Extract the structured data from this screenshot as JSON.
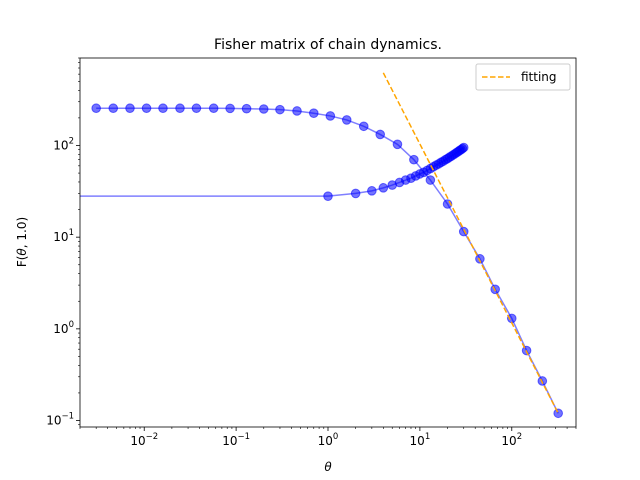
{
  "chart_data": {
    "type": "line",
    "title": "Fisher matrix of chain dynamics.",
    "xlabel": "θ",
    "ylabel": "F(θ, 1.0)",
    "xscale": "log",
    "yscale": "log",
    "xlim": [
      0.002,
      500
    ],
    "ylim": [
      0.085,
      900
    ],
    "grid": false,
    "legend": {
      "placement": "top-right",
      "entries": [
        "fitting"
      ]
    },
    "x_tick_labels": [
      {
        "value": 0.01,
        "base": "10",
        "exp": "−2"
      },
      {
        "value": 0.1,
        "base": "10",
        "exp": "−1"
      },
      {
        "value": 1,
        "base": "10",
        "exp": "0"
      },
      {
        "value": 10,
        "base": "10",
        "exp": "1"
      },
      {
        "value": 100,
        "base": "10",
        "exp": "2"
      }
    ],
    "y_tick_labels": [
      {
        "value": 0.1,
        "base": "10",
        "exp": "−1"
      },
      {
        "value": 1,
        "base": "10",
        "exp": "0"
      },
      {
        "value": 10,
        "base": "10",
        "exp": "1"
      },
      {
        "value": 100,
        "base": "10",
        "exp": "2"
      }
    ],
    "colors": {
      "series": "#0000ff",
      "fitting": "#ffa500"
    },
    "series": [
      {
        "style": "line-markers",
        "x": [
          0.003,
          0.0046,
          0.007,
          0.0106,
          0.016,
          0.0245,
          0.037,
          0.057,
          0.086,
          0.13,
          0.2,
          0.3,
          0.46,
          0.7,
          1.06,
          1.6,
          2.45,
          3.7,
          5.7,
          8.6,
          13,
          20,
          30,
          45,
          66,
          100,
          145,
          215,
          320
        ],
        "y": [
          255,
          255,
          255,
          255,
          255,
          255,
          255,
          255,
          254,
          252,
          250,
          246,
          238,
          225,
          210,
          190,
          162,
          132,
          103,
          70,
          42,
          23,
          11.5,
          5.8,
          2.7,
          1.3,
          0.58,
          0.27,
          0.12
        ]
      },
      {
        "style": "line-markers",
        "x": [
          1,
          2,
          3,
          4,
          5,
          6,
          7,
          8,
          9,
          10,
          11,
          12,
          13,
          14,
          15,
          16,
          17,
          18,
          19,
          20,
          21,
          22,
          23,
          24,
          25,
          26,
          27,
          28,
          29,
          30
        ],
        "y": [
          28,
          30,
          32,
          34.5,
          37,
          39.5,
          42,
          44,
          46.5,
          49,
          51,
          53.5,
          56,
          58.5,
          61,
          63,
          65.5,
          67.5,
          70,
          72,
          74.5,
          76.5,
          79,
          81,
          83.5,
          85.5,
          88,
          90,
          92.5,
          95
        ]
      },
      {
        "style": "line",
        "x": [
          0.002,
          1
        ],
        "y": [
          28,
          28
        ]
      },
      {
        "name": "fitting",
        "style": "dashed",
        "x": [
          4,
          320
        ],
        "y": [
          620,
          0.12
        ]
      }
    ]
  }
}
